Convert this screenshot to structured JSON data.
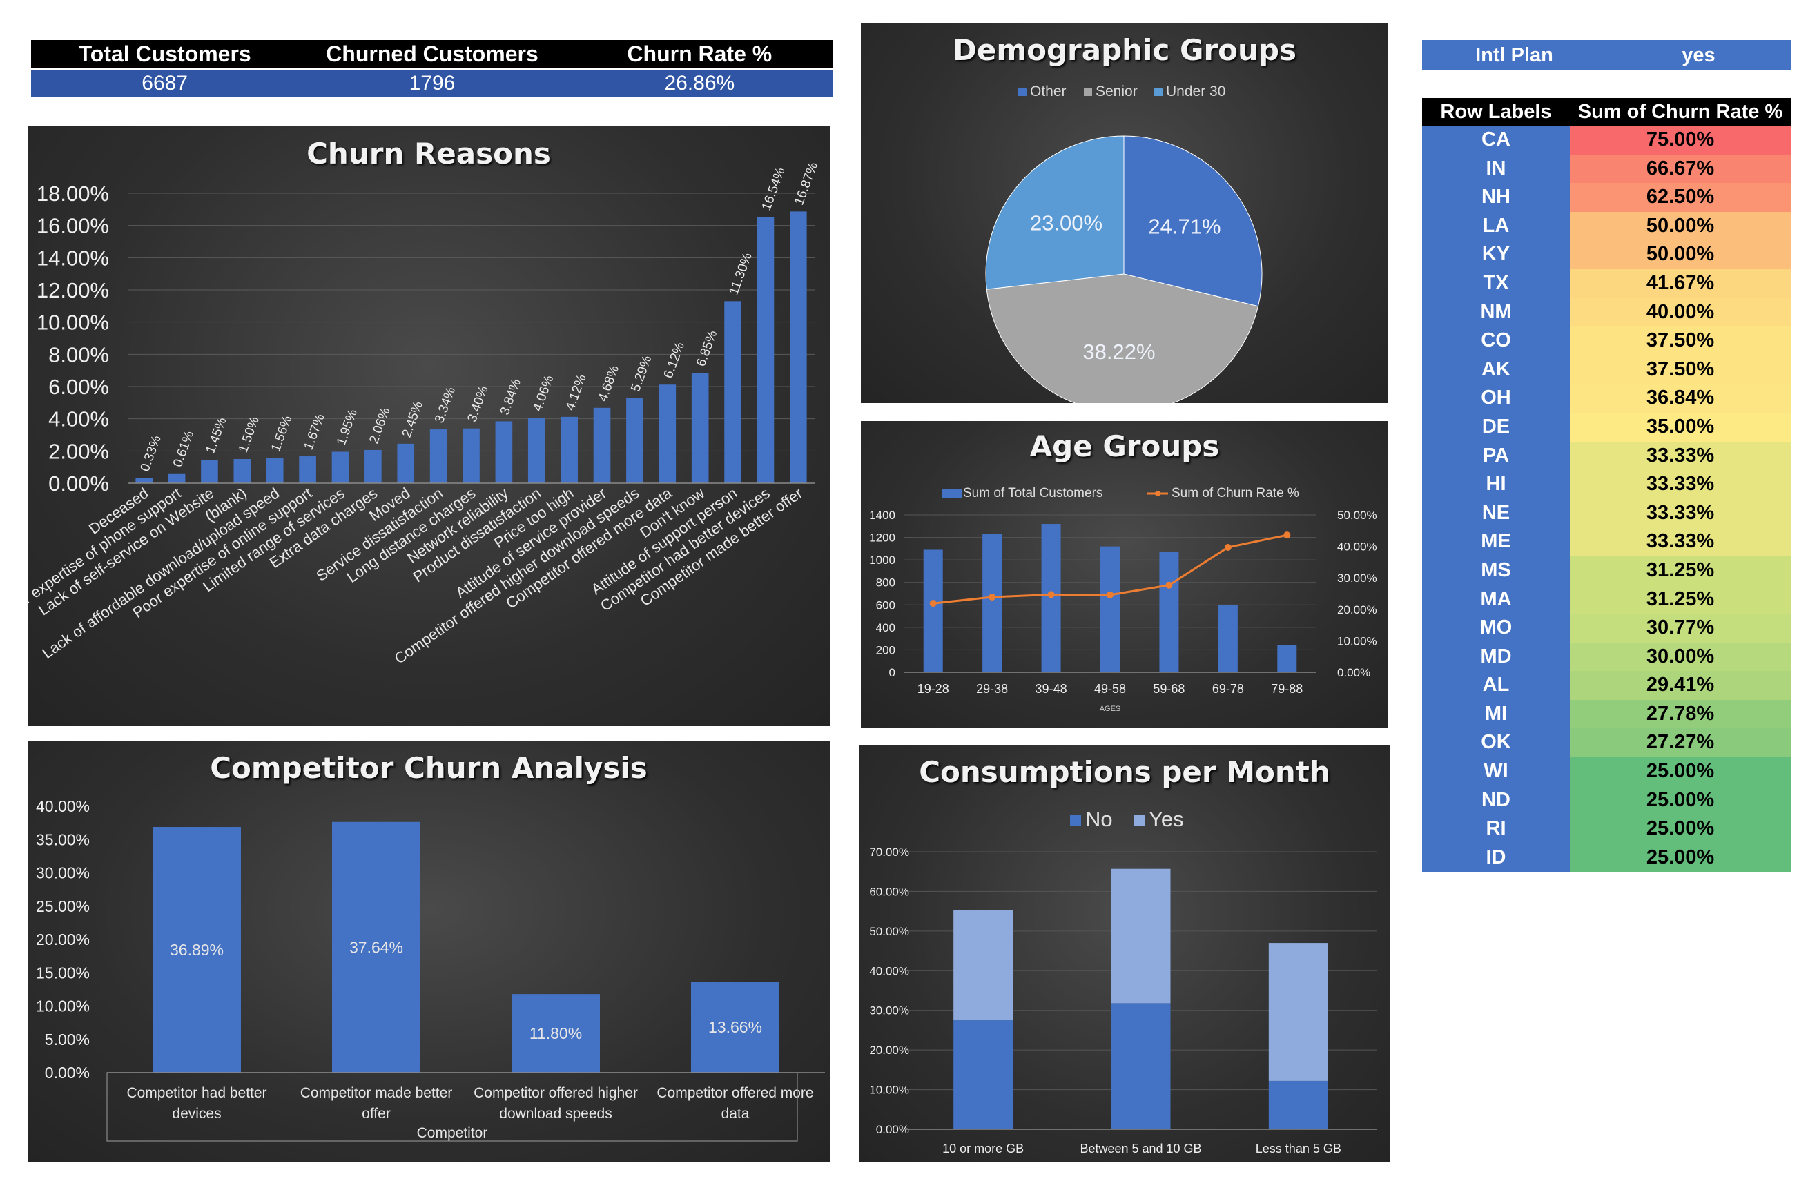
{
  "kpi": {
    "headers": [
      "Total Customers",
      "Churned Customers",
      "Churn Rate %"
    ],
    "values": [
      "6687",
      "1796",
      "26.86%"
    ]
  },
  "filter": {
    "label": "Intl Plan",
    "value": "yes"
  },
  "pivot": {
    "col1": "Row Labels",
    "col2": "Sum of Churn Rate %",
    "rows": [
      {
        "state": "CA",
        "rate": "75.00%",
        "value": 75.0
      },
      {
        "state": "IN",
        "rate": "66.67%",
        "value": 66.67
      },
      {
        "state": "NH",
        "rate": "62.50%",
        "value": 62.5
      },
      {
        "state": "LA",
        "rate": "50.00%",
        "value": 50.0
      },
      {
        "state": "KY",
        "rate": "50.00%",
        "value": 50.0
      },
      {
        "state": "TX",
        "rate": "41.67%",
        "value": 41.67
      },
      {
        "state": "NM",
        "rate": "40.00%",
        "value": 40.0
      },
      {
        "state": "CO",
        "rate": "37.50%",
        "value": 37.5
      },
      {
        "state": "AK",
        "rate": "37.50%",
        "value": 37.5
      },
      {
        "state": "OH",
        "rate": "36.84%",
        "value": 36.84
      },
      {
        "state": "DE",
        "rate": "35.00%",
        "value": 35.0
      },
      {
        "state": "PA",
        "rate": "33.33%",
        "value": 33.33
      },
      {
        "state": "HI",
        "rate": "33.33%",
        "value": 33.33
      },
      {
        "state": "NE",
        "rate": "33.33%",
        "value": 33.33
      },
      {
        "state": "ME",
        "rate": "33.33%",
        "value": 33.33
      },
      {
        "state": "MS",
        "rate": "31.25%",
        "value": 31.25
      },
      {
        "state": "MA",
        "rate": "31.25%",
        "value": 31.25
      },
      {
        "state": "MO",
        "rate": "30.77%",
        "value": 30.77
      },
      {
        "state": "MD",
        "rate": "30.00%",
        "value": 30.0
      },
      {
        "state": "AL",
        "rate": "29.41%",
        "value": 29.41
      },
      {
        "state": "MI",
        "rate": "27.78%",
        "value": 27.78
      },
      {
        "state": "OK",
        "rate": "27.27%",
        "value": 27.27
      },
      {
        "state": "WI",
        "rate": "25.00%",
        "value": 25.0
      },
      {
        "state": "ND",
        "rate": "25.00%",
        "value": 25.0
      },
      {
        "state": "RI",
        "rate": "25.00%",
        "value": 25.0
      },
      {
        "state": "ID",
        "rate": "25.00%",
        "value": 25.0
      }
    ]
  },
  "colors": {
    "bar": "#4472c4",
    "bar_light": "#8faadc",
    "line": "#ed7d31",
    "senior": "#a5a5a5",
    "under30": "#5b9bd5",
    "kpi_values_bg": "#2f55a4"
  },
  "chart_data": [
    {
      "id": "churn_reasons",
      "type": "bar",
      "title": "Churn Reasons",
      "categories": [
        "Deceased",
        "Poor expertise of phone support",
        "Lack of self-service on Website",
        "(blank)",
        "Lack of affordable download/upload speed",
        "Poor expertise of online support",
        "Limited range of services",
        "Extra data charges",
        "Moved",
        "Service dissatisfaction",
        "Long distance charges",
        "Network reliability",
        "Product dissatisfaction",
        "Price too high",
        "Attitude of service provider",
        "Competitor offered higher download speeds",
        "Competitor offered more data",
        "Don't know",
        "Attitude of support person",
        "Competitor had better devices",
        "Competitor made better offer"
      ],
      "values": [
        0.33,
        0.61,
        1.45,
        1.5,
        1.56,
        1.67,
        1.95,
        2.06,
        2.45,
        3.34,
        3.4,
        3.84,
        4.06,
        4.12,
        4.68,
        5.29,
        6.12,
        6.85,
        11.3,
        16.54,
        16.87
      ],
      "labels": [
        "0.33%",
        "0.61%",
        "1.45%",
        "1.50%",
        "1.56%",
        "1.67%",
        "1.95%",
        "2.06%",
        "2.45%",
        "3.34%",
        "3.40%",
        "3.84%",
        "4.06%",
        "4.12%",
        "4.68%",
        "5.29%",
        "6.12%",
        "6.85%",
        "11.30%",
        "16.54%",
        "16.87%"
      ],
      "yticks": [
        "0.00%",
        "2.00%",
        "4.00%",
        "6.00%",
        "8.00%",
        "10.00%",
        "12.00%",
        "14.00%",
        "16.00%",
        "18.00%"
      ],
      "ylim": [
        0,
        18
      ],
      "grid": true
    },
    {
      "id": "demographic_groups",
      "type": "pie",
      "title": "Demographic Groups",
      "legend": [
        "Other",
        "Senior",
        "Under 30"
      ],
      "values": [
        24.71,
        38.22,
        23.0
      ],
      "labels": [
        "24.71%",
        "38.22%",
        "23.00%"
      ],
      "legend_position": "top"
    },
    {
      "id": "age_groups",
      "type": "bar",
      "title": "Age Groups",
      "categories": [
        "19-28",
        "29-38",
        "39-48",
        "49-58",
        "59-68",
        "69-78",
        "79-88"
      ],
      "xlabel": "AGES",
      "series": [
        {
          "name": "Sum of Total Customers",
          "type": "bar",
          "axis": "left",
          "values": [
            1090,
            1230,
            1320,
            1120,
            1070,
            600,
            240
          ]
        },
        {
          "name": "Sum of Churn Rate %",
          "type": "line",
          "axis": "right",
          "values": [
            21.9,
            23.9,
            24.7,
            24.6,
            27.7,
            39.7,
            43.6
          ]
        }
      ],
      "yticks_left": [
        "0",
        "200",
        "400",
        "600",
        "800",
        "1000",
        "1200",
        "1400"
      ],
      "ylim_left": [
        0,
        1400
      ],
      "yticks_right": [
        "0.00%",
        "10.00%",
        "20.00%",
        "30.00%",
        "40.00%",
        "50.00%"
      ],
      "ylim_right": [
        0,
        50
      ],
      "legend_position": "top"
    },
    {
      "id": "competitor_churn",
      "type": "bar",
      "title": "Competitor Churn Analysis",
      "categories": [
        "Competitor had better devices",
        "Competitor made better offer",
        "Competitor offered higher download speeds",
        "Competitor offered more data"
      ],
      "category_lines": [
        [
          "Competitor had better",
          "devices"
        ],
        [
          "Competitor made better",
          "offer"
        ],
        [
          "Competitor offered higher",
          "download speeds"
        ],
        [
          "Competitor offered more",
          "data"
        ]
      ],
      "values": [
        36.89,
        37.64,
        11.8,
        13.66
      ],
      "labels": [
        "36.89%",
        "37.64%",
        "11.80%",
        "13.66%"
      ],
      "xlabel": "Competitor",
      "yticks": [
        "0.00%",
        "5.00%",
        "10.00%",
        "15.00%",
        "20.00%",
        "25.00%",
        "30.00%",
        "35.00%",
        "40.00%"
      ],
      "ylim": [
        0,
        40
      ]
    },
    {
      "id": "consumptions",
      "type": "bar",
      "stacked": true,
      "title": "Consumptions per Month",
      "categories": [
        "10 or more GB",
        "Between 5 and 10 GB",
        "Less than 5 GB"
      ],
      "series": [
        {
          "name": "No",
          "values": [
            27.5,
            31.8,
            12.2
          ]
        },
        {
          "name": "Yes",
          "values": [
            27.7,
            33.9,
            34.8
          ]
        }
      ],
      "yticks": [
        "0.00%",
        "10.00%",
        "20.00%",
        "30.00%",
        "40.00%",
        "50.00%",
        "60.00%",
        "70.00%"
      ],
      "ylim": [
        0,
        70
      ],
      "legend_position": "top"
    }
  ]
}
